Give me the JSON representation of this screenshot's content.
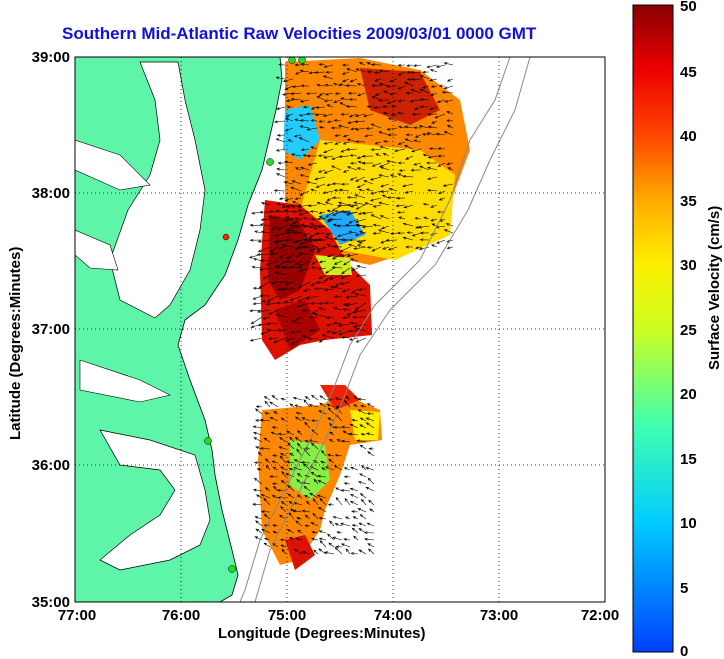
{
  "title": "Southern Mid-Atlantic Raw Velocities 2009/03/01 0000 GMT",
  "x_axis": {
    "label": "Longitude (Degrees:Minutes)",
    "ticks": [
      "77:00",
      "76:00",
      "75:00",
      "74:00",
      "73:00",
      "72:00"
    ]
  },
  "y_axis": {
    "label": "Latitude (Degrees:Minutes)",
    "ticks": [
      "39:00",
      "38:00",
      "37:00",
      "36:00",
      "35:00"
    ]
  },
  "colorbar": {
    "label": "Surface Velocity (cm/s)",
    "ticks": [
      "50",
      "45",
      "40",
      "35",
      "30",
      "25",
      "20",
      "15",
      "10",
      "5",
      "0"
    ],
    "range": [
      0,
      50
    ],
    "colormap": "jet"
  },
  "colors": {
    "land": "#5ef5a8",
    "title": "#1010e0",
    "grid": "#000000",
    "station_marker": "#22dd22"
  },
  "map_extent": {
    "lon_min": -77.0,
    "lon_max": -72.0,
    "lat_min": 35.0,
    "lat_max": 39.0
  },
  "grid": "dotted"
}
